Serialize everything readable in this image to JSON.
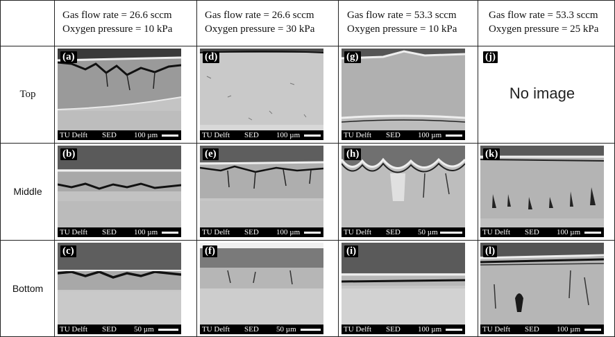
{
  "columns": [
    {
      "line1": "Gas flow rate = 26.6 sccm",
      "line2": "Oxygen pressure = 10 kPa"
    },
    {
      "line1": "Gas flow rate = 26.6 sccm",
      "line2": "Oxygen pressure = 30 kPa"
    },
    {
      "line1": "Gas flow rate = 53.3 sccm",
      "line2": "Oxygen pressure = 10 kPa"
    },
    {
      "line1": "Gas flow rate = 53.3 sccm",
      "line2": "Oxygen pressure = 25 kPa"
    }
  ],
  "rows": [
    "Top",
    "Middle",
    "Bottom"
  ],
  "footer": {
    "lab": "TU Delft",
    "mode": "SED"
  },
  "panels": {
    "a": {
      "label": "(a)",
      "scale": "100 µm"
    },
    "b": {
      "label": "(b)",
      "scale": "100 µm"
    },
    "c": {
      "label": "(c)",
      "scale": "50 µm"
    },
    "d": {
      "label": "(d)",
      "scale": "100 µm"
    },
    "e": {
      "label": "(e)",
      "scale": "100 µm"
    },
    "f": {
      "label": "(f)",
      "scale": "50 µm"
    },
    "g": {
      "label": "(g)",
      "scale": "100 µm"
    },
    "h": {
      "label": "(h)",
      "scale": "50 µm"
    },
    "i": {
      "label": "(i)",
      "scale": "100 µm"
    },
    "j": {
      "label": "(j)",
      "no_image": "No image"
    },
    "k": {
      "label": "(k)",
      "scale": "100 µm"
    },
    "l": {
      "label": "(l)",
      "scale": "100 µm"
    }
  }
}
